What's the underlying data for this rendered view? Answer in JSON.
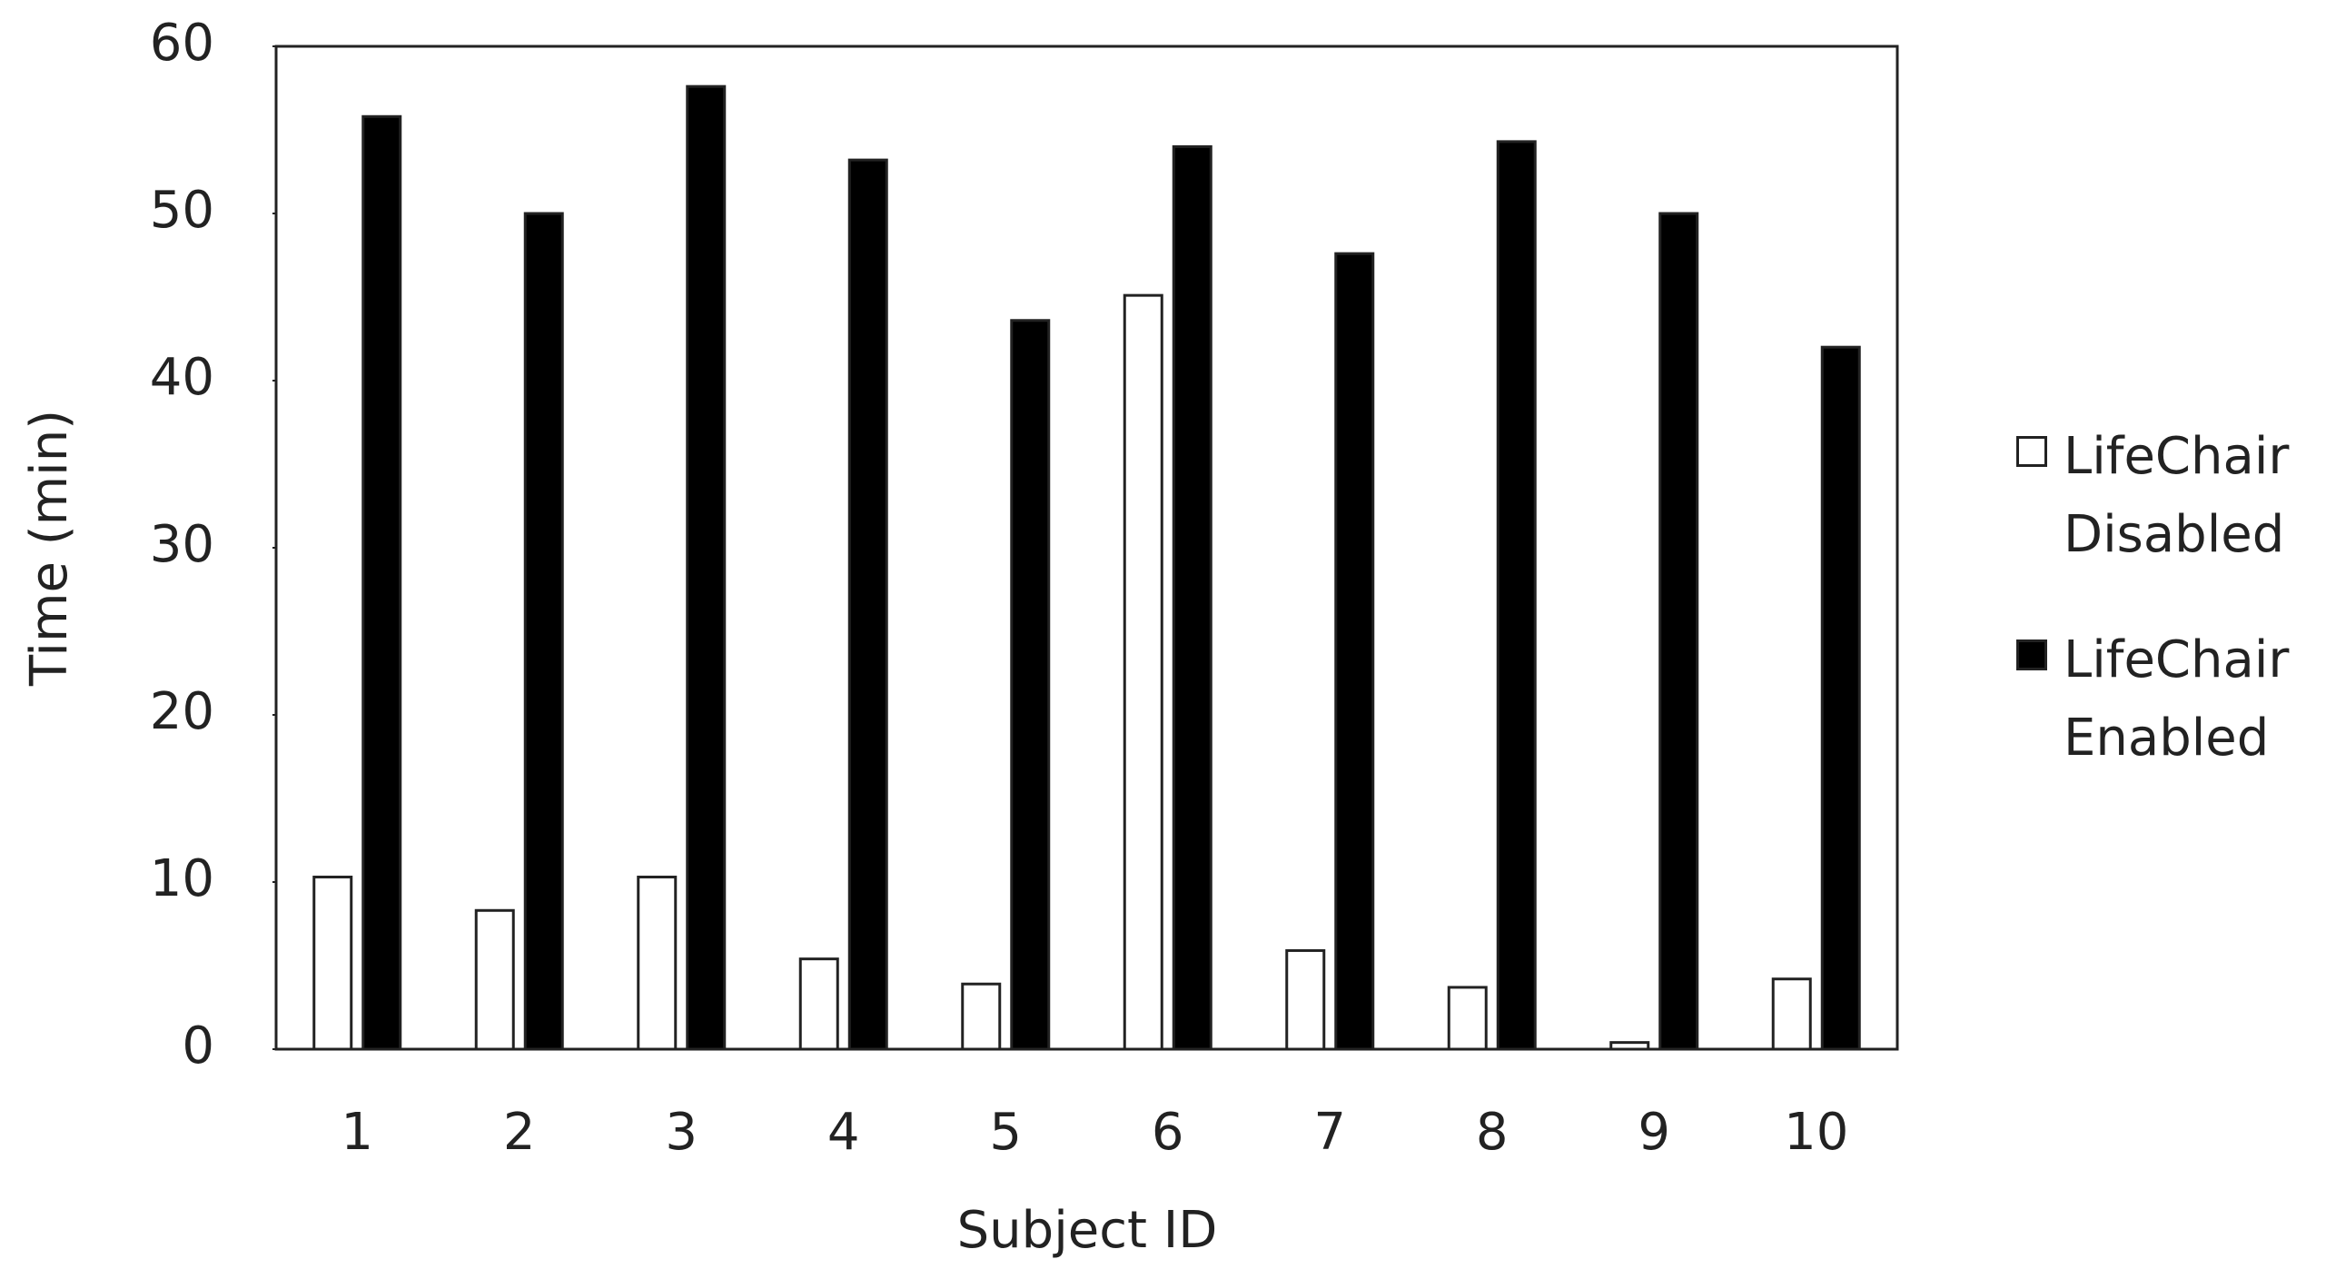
{
  "chart_data": {
    "type": "bar",
    "xlabel": "Subject ID",
    "ylabel": "Time (min)",
    "categories": [
      "1",
      "2",
      "3",
      "4",
      "5",
      "6",
      "7",
      "8",
      "9",
      "10"
    ],
    "series": [
      {
        "name": "LifeChair Disabled",
        "color": "#ffffff",
        "values": [
          10.3,
          8.3,
          10.3,
          5.4,
          3.9,
          45.1,
          5.9,
          3.7,
          0.4,
          4.2
        ]
      },
      {
        "name": "LifeChair Enabled",
        "color": "#000000",
        "values": [
          55.8,
          50,
          57.6,
          53.2,
          43.6,
          54,
          47.6,
          54.3,
          50,
          42
        ]
      }
    ],
    "ylim": [
      0,
      60
    ],
    "yticks": [
      0,
      10,
      20,
      30,
      40,
      50,
      60
    ],
    "grid": false,
    "legend": "right"
  }
}
